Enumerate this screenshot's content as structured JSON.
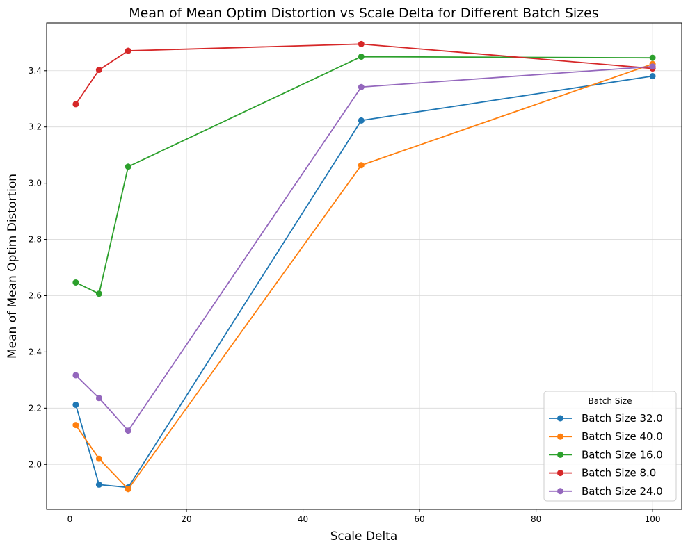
{
  "chart_data": {
    "type": "line",
    "title": "Mean of Mean Optim Distortion vs Scale Delta for Different Batch Sizes",
    "xlabel": "Scale Delta",
    "ylabel": "Mean of Mean Optim Distortion",
    "xlim": [
      -4,
      105
    ],
    "ylim": [
      1.84,
      3.57
    ],
    "xticks": [
      0,
      20,
      40,
      60,
      80,
      100
    ],
    "yticks": [
      2.0,
      2.2,
      2.4,
      2.6,
      2.8,
      3.0,
      3.2,
      3.4
    ],
    "grid": true,
    "legend": {
      "title": "Batch Size",
      "placement": "lower-right"
    },
    "x": [
      1,
      5,
      10,
      50,
      100
    ],
    "series": [
      {
        "name": "Batch Size 32.0",
        "color": "#1f77b4",
        "values": [
          2.212,
          1.928,
          1.918,
          3.223,
          3.381
        ]
      },
      {
        "name": "Batch Size 40.0",
        "color": "#ff7f0e",
        "values": [
          2.14,
          2.02,
          1.912,
          3.064,
          3.424
        ]
      },
      {
        "name": "Batch Size 16.0",
        "color": "#2ca02c",
        "values": [
          2.647,
          2.607,
          3.059,
          3.45,
          3.446
        ]
      },
      {
        "name": "Batch Size 8.0",
        "color": "#d62728",
        "values": [
          3.281,
          3.403,
          3.471,
          3.495,
          3.408
        ]
      },
      {
        "name": "Batch Size 24.0",
        "color": "#9467bd",
        "values": [
          2.317,
          2.236,
          2.12,
          3.342,
          3.415
        ]
      }
    ]
  }
}
